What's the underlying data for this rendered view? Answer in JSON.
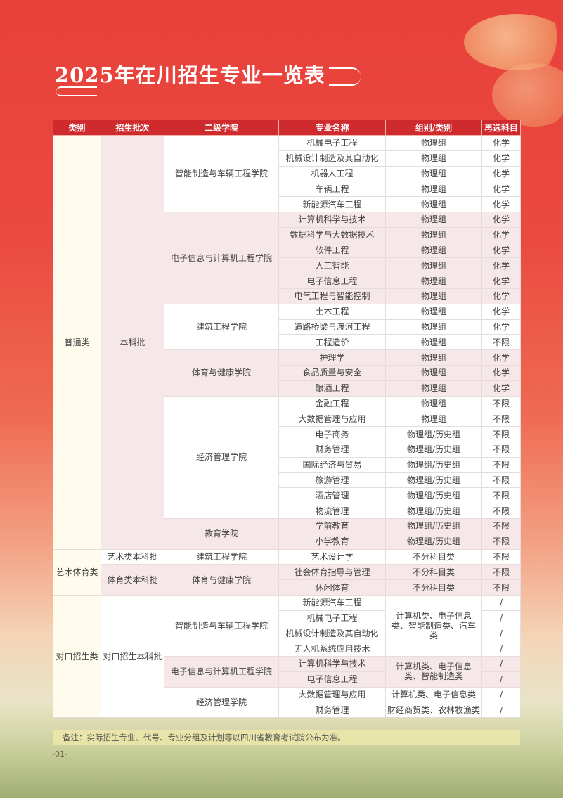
{
  "title": "2025年在川招生专业一览表",
  "headers": [
    "类别",
    "招生批次",
    "二级学院",
    "专业名称",
    "组别/类别",
    "再选科目"
  ],
  "sections": [
    {
      "category": "普通类",
      "batches": [
        {
          "batch": "本科批",
          "colleges": [
            {
              "name": "智能制造与车辆工程学院",
              "majors": [
                [
                  "机械电子工程",
                  "物理组",
                  "化学"
                ],
                [
                  "机械设计制造及其自动化",
                  "物理组",
                  "化学"
                ],
                [
                  "机器人工程",
                  "物理组",
                  "化学"
                ],
                [
                  "车辆工程",
                  "物理组",
                  "化学"
                ],
                [
                  "新能源汽车工程",
                  "物理组",
                  "化学"
                ]
              ]
            },
            {
              "name": "电子信息与计算机工程学院",
              "majors": [
                [
                  "计算机科学与技术",
                  "物理组",
                  "化学"
                ],
                [
                  "数据科学与大数据技术",
                  "物理组",
                  "化学"
                ],
                [
                  "软件工程",
                  "物理组",
                  "化学"
                ],
                [
                  "人工智能",
                  "物理组",
                  "化学"
                ],
                [
                  "电子信息工程",
                  "物理组",
                  "化学"
                ],
                [
                  "电气工程与智能控制",
                  "物理组",
                  "化学"
                ]
              ]
            },
            {
              "name": "建筑工程学院",
              "majors": [
                [
                  "土木工程",
                  "物理组",
                  "化学"
                ],
                [
                  "道路桥梁与渡河工程",
                  "物理组",
                  "化学"
                ],
                [
                  "工程造价",
                  "物理组",
                  "不限"
                ]
              ]
            },
            {
              "name": "体育与健康学院",
              "majors": [
                [
                  "护理学",
                  "物理组",
                  "化学"
                ],
                [
                  "食品质量与安全",
                  "物理组",
                  "化学"
                ],
                [
                  "酿酒工程",
                  "物理组",
                  "化学"
                ]
              ]
            },
            {
              "name": "经济管理学院",
              "majors": [
                [
                  "金融工程",
                  "物理组",
                  "不限"
                ],
                [
                  "大数据管理与应用",
                  "物理组",
                  "不限"
                ],
                [
                  "电子商务",
                  "物理组/历史组",
                  "不限"
                ],
                [
                  "财务管理",
                  "物理组/历史组",
                  "不限"
                ],
                [
                  "国际经济与贸易",
                  "物理组/历史组",
                  "不限"
                ],
                [
                  "旅游管理",
                  "物理组/历史组",
                  "不限"
                ],
                [
                  "酒店管理",
                  "物理组/历史组",
                  "不限"
                ],
                [
                  "物流管理",
                  "物理组/历史组",
                  "不限"
                ]
              ]
            },
            {
              "name": "教育学院",
              "majors": [
                [
                  "学前教育",
                  "物理组/历史组",
                  "不限"
                ],
                [
                  "小学教育",
                  "物理组/历史组",
                  "不限"
                ]
              ]
            }
          ]
        }
      ]
    },
    {
      "category": "艺术体育类",
      "batches": [
        {
          "batch": "艺术类本科批",
          "colleges": [
            {
              "name": "建筑工程学院",
              "majors": [
                [
                  "艺术设计学",
                  "不分科目类",
                  "不限"
                ]
              ]
            }
          ]
        },
        {
          "batch": "体育类本科批",
          "colleges": [
            {
              "name": "体育与健康学院",
              "majors": [
                [
                  "社会体育指导与管理",
                  "不分科目类",
                  "不限"
                ],
                [
                  "休闲体育",
                  "不分科目类",
                  "不限"
                ]
              ]
            }
          ]
        }
      ]
    },
    {
      "category": "对口招生类",
      "batches": [
        {
          "batch": "对口招生本科批",
          "colleges": [
            {
              "name": "智能制造与车辆工程学院",
              "group": "计算机类、电子信息类、智能制造类、汽车类",
              "majors": [
                [
                  "新能源汽车工程",
                  "",
                  "/"
                ],
                [
                  "机械电子工程",
                  "",
                  "/"
                ],
                [
                  "机械设计制造及其自动化",
                  "",
                  "/"
                ],
                [
                  "无人机系统应用技术",
                  "",
                  "/"
                ]
              ]
            },
            {
              "name": "电子信息与计算机工程学院",
              "group": "计算机类、电子信息类、智能制造类",
              "majors": [
                [
                  "计算机科学与技术",
                  "",
                  "/"
                ],
                [
                  "电子信息工程",
                  "",
                  "/"
                ]
              ]
            },
            {
              "name": "经济管理学院",
              "majors": [
                [
                  "大数据管理与应用",
                  "计算机类、电子信息类",
                  "/"
                ],
                [
                  "财务管理",
                  "财经商贸类、农林牧渔类",
                  "/"
                ]
              ]
            }
          ]
        }
      ]
    }
  ],
  "note": "备注：实际招生专业、代号、专业分组及计划等以四川省教育考试院公布为准。",
  "page_number": "-01-",
  "colors": {
    "header": "#cf2a2e",
    "background_top": "#e8403a",
    "row_shade": "#f6e8e8"
  }
}
